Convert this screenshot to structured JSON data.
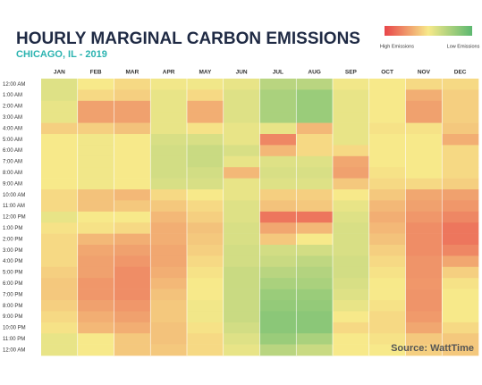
{
  "chart_data": {
    "type": "heatmap",
    "title": "HOURLY MARGINAL CARBON EMISSIONS",
    "subtitle": "CHICAGO, IL - 2019",
    "source": "Source: WattTime",
    "legend_high": "High Emissions",
    "legend_low": "Low Emissions",
    "colorscale": [
      "#5cb870",
      "#f7e98a",
      "#e8454a"
    ],
    "zlim": [
      0,
      100
    ],
    "categories": [
      "12:00 AM",
      "1:00 AM",
      "2:00 AM",
      "3:00 AM",
      "4:00 AM",
      "5:00 AM",
      "6:00 AM",
      "7:00 AM",
      "8:00 AM",
      "9:00 AM",
      "10:00 AM",
      "11:00 AM",
      "12:00 PM",
      "1:00 PM",
      "2:00 PM",
      "3:00 PM",
      "4:00 PM",
      "5:00 PM",
      "6:00 PM",
      "7:00 PM",
      "8:00 PM",
      "9:00 PM",
      "10:00 PM",
      "11:00 PM",
      "12:00 AM"
    ],
    "series": [
      {
        "name": "JAN",
        "values": [
          42,
          42,
          45,
          45,
          58,
          50,
          50,
          50,
          50,
          50,
          55,
          55,
          45,
          52,
          55,
          55,
          55,
          58,
          60,
          60,
          58,
          55,
          52,
          45,
          45
        ]
      },
      {
        "name": "FEB",
        "values": [
          50,
          55,
          72,
          72,
          58,
          48,
          48,
          48,
          48,
          48,
          62,
          62,
          50,
          52,
          65,
          70,
          72,
          72,
          75,
          75,
          72,
          68,
          65,
          50,
          50
        ]
      },
      {
        "name": "MAR",
        "values": [
          55,
          58,
          72,
          72,
          62,
          50,
          50,
          50,
          50,
          50,
          65,
          60,
          50,
          55,
          68,
          72,
          75,
          78,
          78,
          78,
          75,
          72,
          68,
          60,
          60
        ]
      },
      {
        "name": "APR",
        "values": [
          48,
          45,
          45,
          45,
          45,
          40,
          38,
          38,
          38,
          40,
          55,
          60,
          65,
          68,
          68,
          70,
          70,
          68,
          65,
          62,
          60,
          60,
          62,
          62,
          60
        ]
      },
      {
        "name": "MAY",
        "values": [
          48,
          55,
          68,
          68,
          52,
          40,
          35,
          35,
          38,
          40,
          50,
          55,
          58,
          62,
          60,
          58,
          55,
          52,
          50,
          50,
          48,
          48,
          52,
          55,
          55
        ]
      },
      {
        "name": "JUN",
        "values": [
          45,
          42,
          42,
          42,
          45,
          45,
          40,
          45,
          65,
          45,
          45,
          42,
          42,
          40,
          40,
          38,
          38,
          35,
          35,
          35,
          35,
          35,
          38,
          42,
          45
        ]
      },
      {
        "name": "JUL",
        "values": [
          30,
          25,
          25,
          25,
          45,
          80,
          65,
          42,
          40,
          42,
          58,
          62,
          85,
          70,
          60,
          38,
          35,
          30,
          25,
          20,
          18,
          15,
          15,
          20,
          30
        ]
      },
      {
        "name": "AUG",
        "values": [
          30,
          20,
          20,
          20,
          65,
          55,
          55,
          42,
          40,
          42,
          58,
          60,
          85,
          65,
          50,
          38,
          32,
          28,
          25,
          20,
          18,
          15,
          15,
          25,
          35
        ]
      },
      {
        "name": "SEP",
        "values": [
          48,
          45,
          45,
          45,
          45,
          45,
          55,
          70,
          72,
          60,
          50,
          45,
          42,
          40,
          40,
          40,
          38,
          38,
          40,
          42,
          45,
          50,
          55,
          50,
          50
        ]
      },
      {
        "name": "OCT",
        "values": [
          50,
          50,
          50,
          50,
          52,
          50,
          50,
          50,
          52,
          55,
          60,
          65,
          68,
          65,
          62,
          58,
          55,
          52,
          50,
          50,
          52,
          55,
          55,
          52,
          50
        ]
      },
      {
        "name": "NOV",
        "values": [
          55,
          68,
          72,
          72,
          52,
          50,
          50,
          50,
          50,
          55,
          70,
          72,
          75,
          78,
          78,
          78,
          76,
          76,
          75,
          76,
          76,
          74,
          70,
          60,
          58
        ]
      },
      {
        "name": "DEC",
        "values": [
          55,
          58,
          58,
          58,
          60,
          68,
          55,
          55,
          55,
          58,
          72,
          75,
          80,
          85,
          85,
          80,
          70,
          58,
          52,
          50,
          50,
          50,
          55,
          60,
          60
        ]
      }
    ]
  }
}
